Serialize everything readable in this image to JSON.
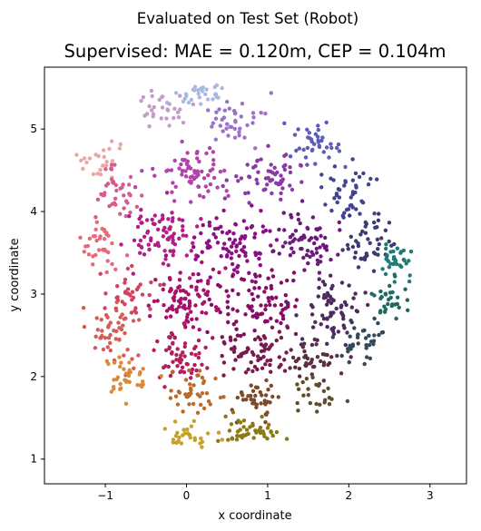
{
  "figure": {
    "suptitle": "Evaluated on Test Set (Robot)"
  },
  "chart_data": {
    "type": "scatter",
    "title": "Supervised: MAE = 0.120m, CEP = 0.104m",
    "xlabel": "x coordinate",
    "ylabel": "y coordinate",
    "xlim": [
      -1.75,
      3.45
    ],
    "ylim": [
      0.7,
      5.75
    ],
    "xticks": [
      -1,
      0,
      1,
      2,
      3
    ],
    "yticks": [
      1,
      2,
      3,
      4,
      5
    ],
    "xtick_labels": [
      "−1",
      "0",
      "1",
      "2",
      "3"
    ],
    "ytick_labels": [
      "1",
      "2",
      "3",
      "4",
      "5"
    ],
    "grid": false,
    "legend": "none",
    "marker_color_scheme": "2D position colormap",
    "regions": [
      {
        "center": [
          0.2,
          5.4
        ],
        "spread": [
          0.35,
          0.15
        ],
        "count": 30,
        "color": "#a9b9e0"
      },
      {
        "center": [
          -0.3,
          5.2
        ],
        "spread": [
          0.35,
          0.2
        ],
        "count": 30,
        "color": "#c49bc9"
      },
      {
        "center": [
          -1.0,
          4.6
        ],
        "spread": [
          0.25,
          0.2
        ],
        "count": 25,
        "color": "#e9a7a4"
      },
      {
        "center": [
          -0.8,
          4.2
        ],
        "spread": [
          0.3,
          0.3
        ],
        "count": 40,
        "color": "#d45c8e"
      },
      {
        "center": [
          0.6,
          5.1
        ],
        "spread": [
          0.35,
          0.25
        ],
        "count": 40,
        "color": "#9a72c8"
      },
      {
        "center": [
          1.6,
          4.8
        ],
        "spread": [
          0.35,
          0.25
        ],
        "count": 40,
        "color": "#5a5cb8"
      },
      {
        "center": [
          0.1,
          4.5
        ],
        "spread": [
          0.45,
          0.3
        ],
        "count": 70,
        "color": "#b143a9"
      },
      {
        "center": [
          1.0,
          4.4
        ],
        "spread": [
          0.45,
          0.3
        ],
        "count": 60,
        "color": "#8a3aa5"
      },
      {
        "center": [
          2.0,
          4.2
        ],
        "spread": [
          0.3,
          0.3
        ],
        "count": 45,
        "color": "#40438f"
      },
      {
        "center": [
          -1.05,
          3.6
        ],
        "spread": [
          0.2,
          0.3
        ],
        "count": 35,
        "color": "#e8687a"
      },
      {
        "center": [
          -0.3,
          3.7
        ],
        "spread": [
          0.4,
          0.35
        ],
        "count": 80,
        "color": "#b01f86"
      },
      {
        "center": [
          0.6,
          3.6
        ],
        "spread": [
          0.45,
          0.35
        ],
        "count": 90,
        "color": "#8c0e84"
      },
      {
        "center": [
          1.5,
          3.6
        ],
        "spread": [
          0.4,
          0.35
        ],
        "count": 70,
        "color": "#6a1a78"
      },
      {
        "center": [
          2.2,
          3.6
        ],
        "spread": [
          0.3,
          0.3
        ],
        "count": 45,
        "color": "#3c3a70"
      },
      {
        "center": [
          2.6,
          3.4
        ],
        "spread": [
          0.2,
          0.25
        ],
        "count": 35,
        "color": "#1f7a78"
      },
      {
        "center": [
          2.5,
          2.9
        ],
        "spread": [
          0.2,
          0.2
        ],
        "count": 30,
        "color": "#1e6a60"
      },
      {
        "center": [
          -0.7,
          3.0
        ],
        "spread": [
          0.25,
          0.25
        ],
        "count": 35,
        "color": "#d2415e"
      },
      {
        "center": [
          0.0,
          2.9
        ],
        "spread": [
          0.45,
          0.35
        ],
        "count": 90,
        "color": "#a8116a"
      },
      {
        "center": [
          0.9,
          2.9
        ],
        "spread": [
          0.45,
          0.35
        ],
        "count": 85,
        "color": "#860c66"
      },
      {
        "center": [
          1.8,
          2.8
        ],
        "spread": [
          0.35,
          0.35
        ],
        "count": 70,
        "color": "#4e2a60"
      },
      {
        "center": [
          2.2,
          2.5
        ],
        "spread": [
          0.25,
          0.25
        ],
        "count": 35,
        "color": "#334858"
      },
      {
        "center": [
          -0.9,
          2.5
        ],
        "spread": [
          0.3,
          0.35
        ],
        "count": 50,
        "color": "#d65a55"
      },
      {
        "center": [
          -0.1,
          2.2
        ],
        "spread": [
          0.3,
          0.3
        ],
        "count": 55,
        "color": "#b41e5c"
      },
      {
        "center": [
          0.9,
          2.3
        ],
        "spread": [
          0.45,
          0.3
        ],
        "count": 70,
        "color": "#7a1a4c"
      },
      {
        "center": [
          1.6,
          2.2
        ],
        "spread": [
          0.3,
          0.25
        ],
        "count": 40,
        "color": "#5b2e42"
      },
      {
        "center": [
          -0.7,
          2.0
        ],
        "spread": [
          0.25,
          0.25
        ],
        "count": 35,
        "color": "#d98a3a"
      },
      {
        "center": [
          0.1,
          1.8
        ],
        "spread": [
          0.3,
          0.25
        ],
        "count": 40,
        "color": "#b86a2c"
      },
      {
        "center": [
          0.9,
          1.7
        ],
        "spread": [
          0.35,
          0.2
        ],
        "count": 40,
        "color": "#7c4a28"
      },
      {
        "center": [
          0.0,
          1.3
        ],
        "spread": [
          0.3,
          0.15
        ],
        "count": 30,
        "color": "#c6a12a"
      },
      {
        "center": [
          0.8,
          1.35
        ],
        "spread": [
          0.35,
          0.15
        ],
        "count": 45,
        "color": "#8a7a14"
      },
      {
        "center": [
          1.6,
          1.8
        ],
        "spread": [
          0.25,
          0.2
        ],
        "count": 25,
        "color": "#5f4e2a"
      }
    ]
  }
}
